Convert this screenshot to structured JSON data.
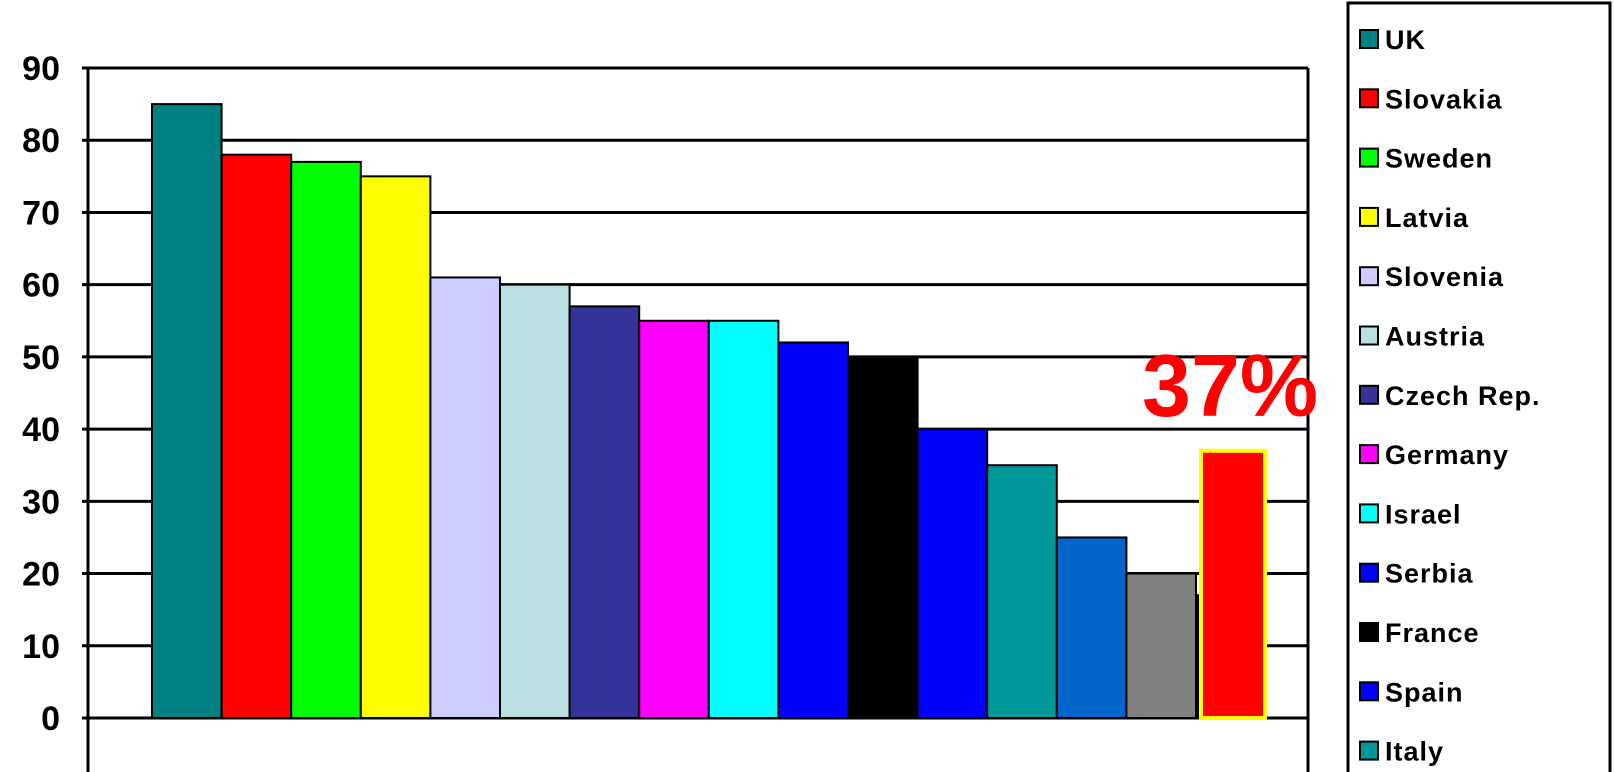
{
  "chart_data": {
    "type": "bar",
    "yticks": [
      0,
      10,
      20,
      30,
      40,
      50,
      60,
      70,
      80,
      90
    ],
    "ylim": [
      0,
      90
    ],
    "grid": true,
    "legend_position": "right",
    "series": [
      {
        "name": "UK",
        "value": 85,
        "color": "#008080"
      },
      {
        "name": "Slovakia",
        "value": 78,
        "color": "#ff0000"
      },
      {
        "name": "Sweden",
        "value": 77,
        "color": "#00ff00"
      },
      {
        "name": "Latvia",
        "value": 75,
        "color": "#ffff00"
      },
      {
        "name": "Slovenia",
        "value": 61,
        "color": "#ccccff"
      },
      {
        "name": "Austria",
        "value": 60,
        "color": "#b9dfe3"
      },
      {
        "name": "Czech Rep.",
        "value": 57,
        "color": "#333399"
      },
      {
        "name": "Germany",
        "value": 55,
        "color": "#ff00ff"
      },
      {
        "name": "Israel",
        "value": 55,
        "color": "#00ffff"
      },
      {
        "name": "Serbia",
        "value": 52,
        "color": "#0000ff"
      },
      {
        "name": "France",
        "value": 50,
        "color": "#000000"
      },
      {
        "name": "Spain",
        "value": 40,
        "color": "#0000ff"
      },
      {
        "name": "Italy",
        "value": 35,
        "color": "#009999"
      },
      {
        "name": "",
        "value": 25,
        "color": "#0066cc"
      },
      {
        "name": "",
        "value": 20,
        "color": "#808080"
      },
      {
        "name": "",
        "value": 17,
        "color": "#000000"
      }
    ],
    "highlight": {
      "value": 37,
      "color": "#ff0000",
      "border": "#ffff00"
    },
    "annotation": "37%"
  }
}
